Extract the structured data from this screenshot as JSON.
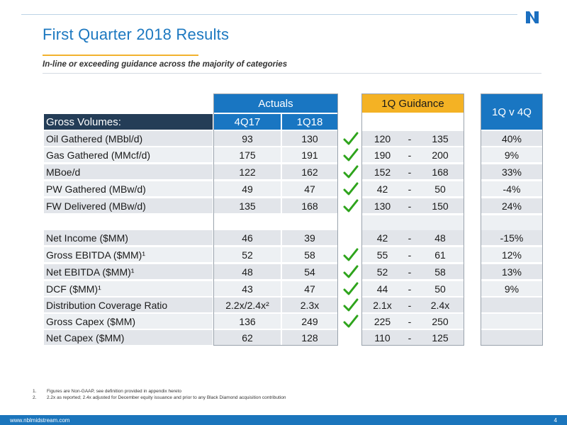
{
  "header": {
    "title": "First Quarter 2018 Results",
    "subtitle": "In-line or exceeding guidance across the majority of categories",
    "logo_icon": "nblx-logo-icon"
  },
  "table": {
    "actuals_label": "Actuals",
    "guidance_label": "1Q Guidance",
    "compare_label": "1Q v 4Q",
    "row_header": "Gross Volumes:",
    "col_4q17": "4Q17",
    "col_1q18": "1Q18",
    "rows": [
      {
        "label": "Oil Gathered (MBbl/d)",
        "q4": "93",
        "q1": "130",
        "check": true,
        "glow": "120",
        "dash": "-",
        "ghigh": "135",
        "cmp": "40%"
      },
      {
        "label": "Gas Gathered (MMcf/d)",
        "q4": "175",
        "q1": "191",
        "check": true,
        "glow": "190",
        "dash": "-",
        "ghigh": "200",
        "cmp": "9%"
      },
      {
        "label": " MBoe/d",
        "q4": "122",
        "q1": "162",
        "check": true,
        "glow": "152",
        "dash": "-",
        "ghigh": "168",
        "cmp": "33%"
      },
      {
        "label": "PW Gathered (MBw/d)",
        "q4": "49",
        "q1": "47",
        "check": true,
        "glow": "42",
        "dash": "-",
        "ghigh": "50",
        "cmp": "-4%"
      },
      {
        "label": "FW Delivered (MBw/d)",
        "q4": "135",
        "q1": "168",
        "check": true,
        "glow": "130",
        "dash": "-",
        "ghigh": "150",
        "cmp": "24%"
      },
      {
        "label": "",
        "q4": "",
        "q1": "",
        "check": false,
        "glow": "",
        "dash": "",
        "ghigh": "",
        "cmp": "",
        "blank": true
      },
      {
        "label": "Net Income ($MM)",
        "q4": "46",
        "q1": "39",
        "check": false,
        "glow": "42",
        "dash": "-",
        "ghigh": "48",
        "cmp": "-15%"
      },
      {
        "label": "Gross EBITDA ($MM)¹",
        "q4": "52",
        "q1": "58",
        "check": true,
        "glow": "55",
        "dash": "-",
        "ghigh": "61",
        "cmp": "12%"
      },
      {
        "label": "Net EBITDA ($MM)¹",
        "q4": "48",
        "q1": "54",
        "check": true,
        "glow": "52",
        "dash": "-",
        "ghigh": "58",
        "cmp": "13%"
      },
      {
        "label": "DCF ($MM)¹",
        "q4": "43",
        "q1": "47",
        "check": true,
        "glow": "44",
        "dash": "-",
        "ghigh": "50",
        "cmp": "9%"
      },
      {
        "label": "Distribution Coverage Ratio",
        "q4": "2.2x/2.4x²",
        "q1": "2.3x",
        "check": true,
        "glow": "2.1x",
        "dash": "-",
        "ghigh": "2.4x",
        "cmp": ""
      },
      {
        "label": "Gross Capex ($MM)",
        "q4": "136",
        "q1": "249",
        "check": true,
        "glow": "225",
        "dash": "-",
        "ghigh": "250",
        "cmp": ""
      },
      {
        "label": "Net Capex ($MM)",
        "q4": "62",
        "q1": "128",
        "check": false,
        "glow": "110",
        "dash": "-",
        "ghigh": "125",
        "cmp": ""
      }
    ]
  },
  "footnotes": [
    {
      "num": "1.",
      "text": "Figures are Non-GAAP, see definition provided in appendix hereto"
    },
    {
      "num": "2.",
      "text": "2.2x as reported; 2.4x adjusted for December equity issuance and prior to any Black Diamond acquisition contribution"
    }
  ],
  "footer": {
    "url": "www.nblmidstream.com",
    "page": "4"
  },
  "colors": {
    "title": "#1c78c0",
    "accent_gold": "#f4b224",
    "header_blue": "#1976c2",
    "header_dark": "#243d57",
    "check_green": "#2ea41c",
    "cell_gray": "#e2e5ea"
  }
}
